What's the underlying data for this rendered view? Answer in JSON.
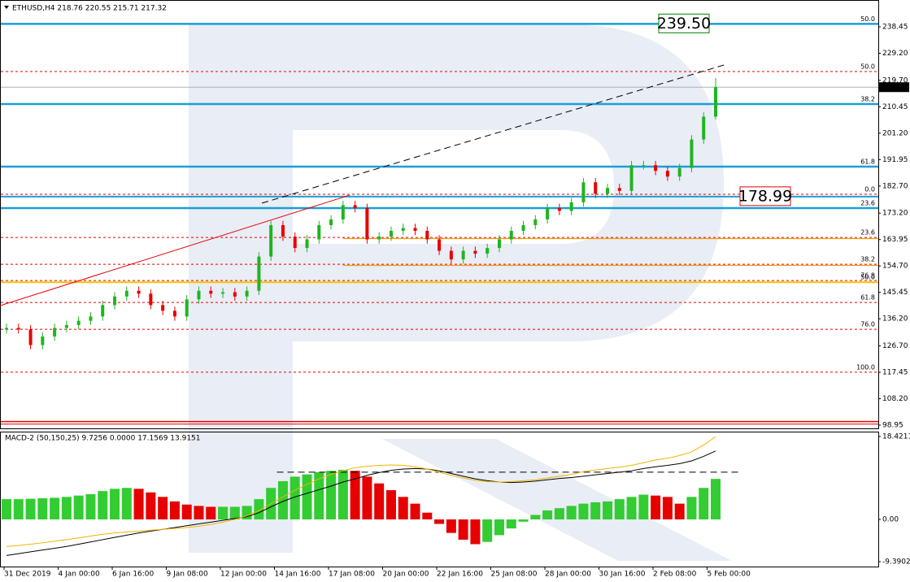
{
  "chart_data": [
    {
      "type": "candlestick",
      "title": "ETHUSD,H4  218.76 220.55 215.71 217.32",
      "open": [
        132.5,
        133,
        132.5,
        127,
        130,
        133,
        134,
        135.5,
        137,
        141,
        144,
        146,
        145,
        141,
        139,
        137,
        143,
        146,
        145,
        145.5,
        144,
        146,
        158,
        169,
        165,
        161,
        164,
        169,
        171,
        176,
        175,
        164,
        165,
        167,
        168,
        167,
        164,
        160,
        157,
        160,
        159,
        161,
        164,
        167,
        169,
        171,
        175,
        174,
        177,
        184,
        180,
        182,
        181,
        190,
        190,
        188,
        186,
        189,
        199,
        207
      ],
      "high": [
        134.5,
        134.5,
        134,
        131.5,
        134.5,
        135.5,
        137,
        138.5,
        142.5,
        145.5,
        147.5,
        147.5,
        146.5,
        142.5,
        140.5,
        144.5,
        147.5,
        147.5,
        147,
        147,
        147.5,
        159.5,
        170.5,
        170.5,
        166.5,
        165.5,
        170.5,
        172.5,
        177.5,
        177.5,
        176.5,
        166.5,
        168.5,
        169.5,
        169.5,
        168.5,
        165.5,
        161.5,
        161.5,
        161.5,
        162.5,
        165.5,
        168.5,
        170.5,
        172.5,
        176.5,
        176.5,
        178.5,
        185.5,
        185.5,
        183.5,
        183.5,
        191.5,
        191.5,
        191.5,
        189.5,
        190.5,
        200.5,
        208.5,
        220.55
      ],
      "low": [
        131,
        131,
        125.5,
        125.5,
        128.5,
        131.5,
        132.5,
        134,
        135.5,
        139.5,
        142.5,
        143.5,
        139.5,
        137.5,
        135.5,
        135.5,
        141.5,
        143.5,
        143.5,
        142.5,
        142.5,
        144.5,
        156.5,
        163.5,
        159.5,
        159.5,
        162.5,
        167.5,
        169.5,
        173.5,
        162.5,
        162.5,
        163.5,
        165.5,
        165.5,
        162.5,
        158.5,
        155.5,
        155.5,
        157.5,
        157.5,
        159.5,
        162.5,
        165.5,
        167.5,
        169.5,
        172.5,
        172.5,
        175.5,
        178.5,
        178.5,
        179.5,
        179.5,
        188.5,
        186.5,
        184.5,
        184.5,
        187.5,
        197.5,
        206
      ],
      "close": [
        133,
        132.5,
        127,
        130,
        133,
        134,
        135.5,
        137,
        141,
        144,
        146,
        145,
        141,
        139,
        137,
        143,
        146,
        145,
        145.5,
        144,
        146,
        158,
        169,
        165,
        161,
        164,
        169,
        171,
        176,
        175,
        164,
        165,
        167,
        168,
        167,
        164,
        160,
        157,
        160,
        159,
        161,
        164,
        167,
        169,
        171,
        175,
        174,
        177,
        184,
        180,
        182,
        181,
        190,
        190,
        188,
        186,
        189,
        199,
        207,
        217.32
      ],
      "up_color": "#1fb51f",
      "down_color": "#e60000",
      "ylim": [
        97.53,
        247.85
      ],
      "yticks": [
        238.45,
        {
          "value": 229.2,
          "label": "229.20"
        },
        {
          "value": 219.7,
          "label": "219.70"
        },
        210.45,
        {
          "value": 201.2,
          "label": "201.20"
        },
        191.95,
        {
          "value": 182.7,
          "label": "182.70"
        },
        {
          "value": 173.2,
          "label": "173.20"
        },
        163.95,
        {
          "value": 154.7,
          "label": "154.70"
        },
        145.45,
        {
          "value": 136.2,
          "label": "136.20"
        },
        {
          "value": 126.7,
          "label": "126.70"
        },
        117.45,
        {
          "value": 108.2,
          "label": "108.20"
        },
        98.95
      ],
      "xlabels": [
        "31 Dec 2019",
        "4 Jan 00:00",
        "6 Jan 16:00",
        "9 Jan 08:00",
        "12 Jan 00:00",
        "14 Jan 16:00",
        "17 Jan 08:00",
        "20 Jan 00:00",
        "22 Jan 16:00",
        "25 Jan 08:00",
        "28 Jan 00:00",
        "30 Jan 16:00",
        "2 Feb 08:00",
        "5 Feb 00:00"
      ],
      "last_price": 217.32,
      "levels": [
        {
          "value": 239.5,
          "color": "#1a9fd6",
          "width": 2.5,
          "label": "50.0",
          "label_color": "#2e8b2e"
        },
        {
          "value": 222.8,
          "color": "#e60000",
          "dash": true,
          "label": "50.0",
          "label_color": "#e60000"
        },
        {
          "value": 211.4,
          "color": "#1a9fd6",
          "width": 2.5,
          "label": "38.2",
          "label_color": "#2e8b2e"
        },
        {
          "value": 189.5,
          "color": "#1a9fd6",
          "width": 2.5,
          "label": "61.8",
          "label_color": "#2e8b2e"
        },
        {
          "value": 179.8,
          "color": "#e60000",
          "dash": true,
          "label": "0.0",
          "label_color": "#e60000"
        },
        {
          "value": 178.99,
          "color": "#1a9fd6",
          "width": 2
        },
        {
          "value": 174.95,
          "color": "#1a9fd6",
          "width": 2.5,
          "label": "23.6",
          "label_color": "#2e8b2e"
        },
        {
          "value": 164.7,
          "color": "#e60000",
          "dash": true,
          "label": "23.6",
          "label_color": "#e60000"
        },
        {
          "value": 164.3,
          "color": "#f39c12",
          "width": 1.2,
          "start": 28
        },
        {
          "value": 155.3,
          "color": "#e60000",
          "dash": true,
          "label": "38.2",
          "label_color": "#e60000"
        },
        {
          "value": 154.9,
          "color": "#f39c12",
          "width": 1.2,
          "start": 28
        },
        {
          "value": 149.6,
          "color": "#e60000",
          "dash": true,
          "label": "76.8",
          "label_color": "#e60000"
        },
        {
          "value": 149.0,
          "color": "#f5c400",
          "width": 2,
          "label": "50.0",
          "label_color": "#e60000"
        },
        {
          "value": 141.9,
          "color": "#e60000",
          "dash": true,
          "label": "61.8",
          "label_color": "#e60000"
        },
        {
          "value": 132.5,
          "color": "#e60000",
          "dash": true,
          "label": "76.0",
          "label_color": "#e60000"
        },
        {
          "value": 117.5,
          "color": "#e60000",
          "dash": true,
          "label": "100.0",
          "label_color": "#e60000"
        },
        {
          "value": 100.2,
          "color": "#e60000",
          "width": 1.5
        },
        {
          "value": 99.3,
          "color": "#e60000",
          "width": 1
        }
      ],
      "price_labels": [
        {
          "value": 239.5,
          "label": "239.50",
          "color": "#008000"
        },
        {
          "value": 178.99,
          "color": "#e60000"
        }
      ],
      "trendlines": [
        {
          "from": [
            -0.54,
            140.8
          ],
          "to": [
            28.55,
            179.5
          ],
          "color": "#e60000"
        },
        {
          "from": [
            21.25,
            176.7
          ],
          "to": [
            59.7,
            225.1
          ],
          "color": "#000000",
          "dash": true
        }
      ]
    },
    {
      "type": "macd",
      "title": "MACD-2 (50,150,25) 9.7256 0.0000 17.1569 13.9151",
      "histogram": [
        4.5,
        4.5,
        4.6,
        4.7,
        4.8,
        5,
        5.3,
        5.6,
        6.3,
        6.8,
        7,
        6.8,
        6,
        5,
        4,
        3.3,
        3,
        2.8,
        2.8,
        2.8,
        3,
        4.5,
        7,
        8.5,
        9.5,
        10,
        10.5,
        10.8,
        11,
        10.8,
        9.5,
        8,
        6.5,
        5,
        3.5,
        1.5,
        -1,
        -3,
        -4.5,
        -5.5,
        -5,
        -3.5,
        -2,
        -0.5,
        1,
        2,
        2.5,
        3,
        3.5,
        3.8,
        4,
        4.5,
        5,
        5.5,
        5.3,
        5,
        3.5,
        5,
        7,
        9
      ],
      "up_color": "#33cc33",
      "down_color": "#e60000",
      "series": [
        {
          "color": "#000000",
          "values": [
            -8,
            -7.6,
            -7.2,
            -6.8,
            -6.4,
            -6,
            -5.5,
            -5,
            -4.5,
            -4,
            -3.5,
            -3,
            -2.6,
            -2.2,
            -1.8,
            -1.4,
            -1,
            -0.6,
            -0.2,
            0.2,
            0.6,
            1.5,
            2.8,
            4,
            5,
            5.8,
            6.6,
            7.4,
            8.3,
            9,
            9.8,
            10.4,
            10.9,
            11.2,
            11.3,
            11.2,
            10.8,
            10.2,
            9.6,
            9,
            8.6,
            8.3,
            8.2,
            8.3,
            8.5,
            8.8,
            9.1,
            9.3,
            9.6,
            9.9,
            10.2,
            10.5,
            10.8,
            11.3,
            11.7,
            12,
            12.4,
            13,
            14,
            15.2
          ]
        },
        {
          "color": "#f0b400",
          "values": [
            -6,
            -5.8,
            -5.5,
            -5.2,
            -4.8,
            -4.5,
            -4.1,
            -3.7,
            -3.3,
            -3,
            -2.8,
            -2.6,
            -2.4,
            -2.2,
            -2,
            -1.8,
            -1.5,
            -1.1,
            -0.6,
            0,
            0.8,
            2,
            3.5,
            5,
            6.5,
            7.8,
            9,
            10,
            10.8,
            11.5,
            11.8,
            12,
            12.1,
            12,
            11.7,
            11.2,
            10.5,
            9.8,
            9.2,
            8.7,
            8.4,
            8.3,
            8.4,
            8.6,
            8.8,
            9.2,
            9.6,
            10,
            10.6,
            11,
            11.3,
            11.6,
            12,
            12.6,
            13.2,
            13.6,
            14.2,
            15,
            16.5,
            18.4
          ]
        }
      ],
      "level": 10.5,
      "level_start": 22.5,
      "ylim": [
        -10.47,
        19.32
      ],
      "yticks": [
        18.4211,
        {
          "value": 0,
          "label": "0.00"
        },
        -9.3902
      ]
    }
  ]
}
